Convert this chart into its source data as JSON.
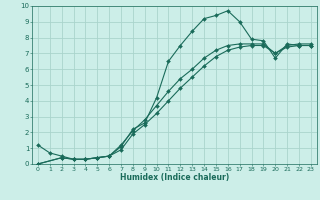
{
  "xlabel": "Humidex (Indice chaleur)",
  "bg_color": "#cceee8",
  "grid_color": "#aad4cc",
  "line_color": "#1a6b5a",
  "xlim": [
    -0.5,
    23.5
  ],
  "ylim": [
    0,
    10
  ],
  "xticks": [
    0,
    1,
    2,
    3,
    4,
    5,
    6,
    7,
    8,
    9,
    10,
    11,
    12,
    13,
    14,
    15,
    16,
    17,
    18,
    19,
    20,
    21,
    22,
    23
  ],
  "yticks": [
    0,
    1,
    2,
    3,
    4,
    5,
    6,
    7,
    8,
    9,
    10
  ],
  "line1_x": [
    0,
    1,
    2,
    3,
    4,
    5,
    6,
    7,
    8,
    9,
    10,
    11,
    12,
    13,
    14,
    15,
    16,
    17,
    18,
    19,
    20,
    21,
    22,
    23
  ],
  "line1_y": [
    1.2,
    0.7,
    0.5,
    0.3,
    0.3,
    0.4,
    0.5,
    1.1,
    2.2,
    2.6,
    4.2,
    6.5,
    7.5,
    8.4,
    9.2,
    9.4,
    9.7,
    9.0,
    7.9,
    7.8,
    6.7,
    7.6,
    7.5,
    7.5
  ],
  "line2_x": [
    0,
    2,
    3,
    4,
    5,
    6,
    7,
    8,
    9,
    10,
    11,
    12,
    13,
    14,
    15,
    16,
    17,
    18,
    19,
    20,
    21,
    22,
    23
  ],
  "line2_y": [
    0.0,
    0.4,
    0.3,
    0.3,
    0.4,
    0.5,
    0.9,
    1.9,
    2.5,
    3.2,
    4.0,
    4.8,
    5.5,
    6.2,
    6.8,
    7.2,
    7.4,
    7.5,
    7.5,
    7.0,
    7.4,
    7.5,
    7.5
  ],
  "line3_x": [
    0,
    2,
    3,
    4,
    5,
    6,
    7,
    8,
    9,
    10,
    11,
    12,
    13,
    14,
    15,
    16,
    17,
    18,
    19,
    20,
    21,
    22,
    23
  ],
  "line3_y": [
    0.0,
    0.4,
    0.3,
    0.3,
    0.4,
    0.5,
    1.2,
    2.1,
    2.8,
    3.7,
    4.6,
    5.4,
    6.0,
    6.7,
    7.2,
    7.5,
    7.6,
    7.6,
    7.6,
    7.0,
    7.5,
    7.6,
    7.6
  ]
}
